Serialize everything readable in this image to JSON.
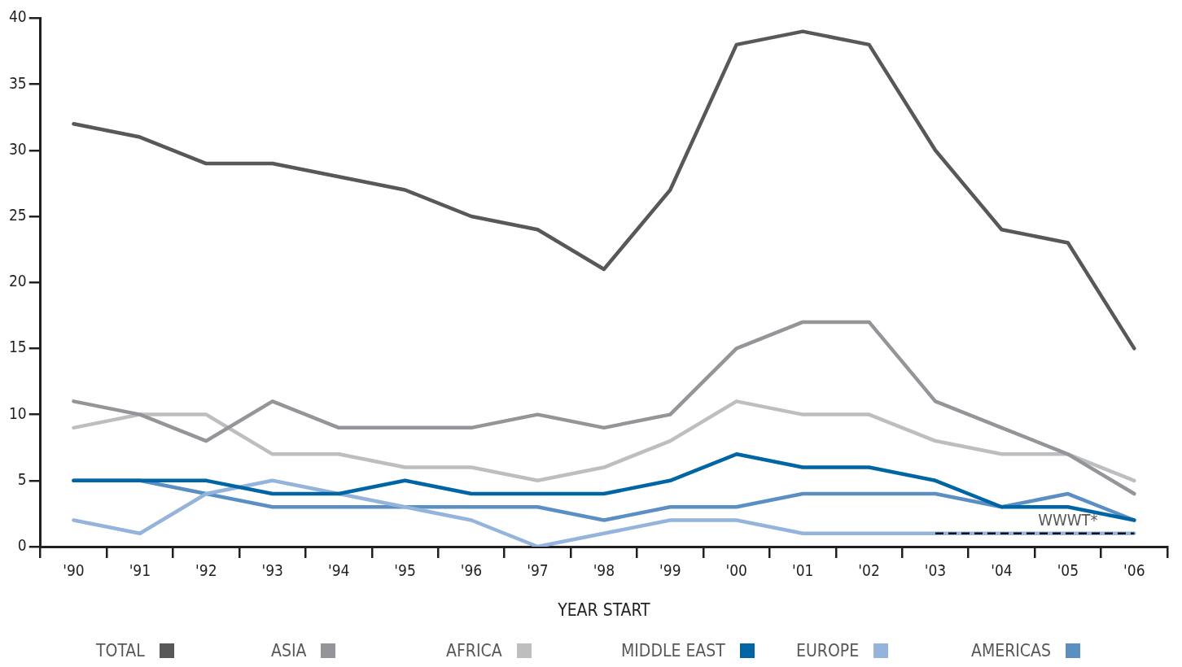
{
  "chart_data": {
    "type": "line",
    "xlabel": "YEAR START",
    "categories": [
      "'90",
      "'91",
      "'92",
      "'93",
      "'94",
      "'95",
      "'96",
      "'97",
      "'98",
      "'99",
      "'00",
      "'01",
      "'02",
      "'03",
      "'04",
      "'05",
      "'06"
    ],
    "ylim": [
      0,
      40
    ],
    "yticks": [
      0,
      5,
      10,
      15,
      20,
      25,
      30,
      35,
      40
    ],
    "grid": false,
    "legend": "bottom",
    "marker": "none",
    "series": [
      {
        "name": "TOTAL",
        "color": "#58585a",
        "values": [
          32,
          31,
          29,
          29,
          28,
          27,
          25,
          24,
          21,
          27,
          38,
          39,
          38,
          30,
          24,
          23,
          15
        ]
      },
      {
        "name": "ASIA",
        "color": "#939598",
        "values": [
          11,
          10,
          8,
          11,
          9,
          9,
          9,
          10,
          9,
          10,
          15,
          17,
          17,
          11,
          9,
          7,
          4
        ]
      },
      {
        "name": "AFRICA",
        "color": "#bcbec0",
        "values": [
          9,
          10,
          10,
          7,
          7,
          6,
          6,
          5,
          6,
          8,
          11,
          10,
          10,
          8,
          7,
          7,
          5
        ]
      },
      {
        "name": "MIDDLE EAST",
        "color": "#0065a4",
        "values": [
          5,
          5,
          5,
          4,
          4,
          5,
          4,
          4,
          4,
          5,
          7,
          6,
          6,
          5,
          3,
          3,
          2
        ]
      },
      {
        "name": "EUROPE",
        "color": "#94b4dc",
        "values": [
          2,
          1,
          4,
          5,
          4,
          3,
          2,
          0,
          1,
          2,
          2,
          1,
          1,
          1,
          1,
          1,
          1
        ]
      },
      {
        "name": "AMERICAS",
        "color": "#5b8fc3",
        "values": [
          5,
          5,
          4,
          3,
          3,
          3,
          3,
          3,
          2,
          3,
          3,
          4,
          4,
          4,
          3,
          4,
          2
        ]
      },
      {
        "color": "#111111",
        "line_style": "dashed",
        "values": [
          null,
          null,
          null,
          null,
          null,
          null,
          null,
          null,
          null,
          null,
          null,
          null,
          null,
          1,
          1,
          1,
          1
        ]
      }
    ],
    "annotations": [
      {
        "text": "WWWT*",
        "x": "'05",
        "y": 1
      }
    ]
  }
}
